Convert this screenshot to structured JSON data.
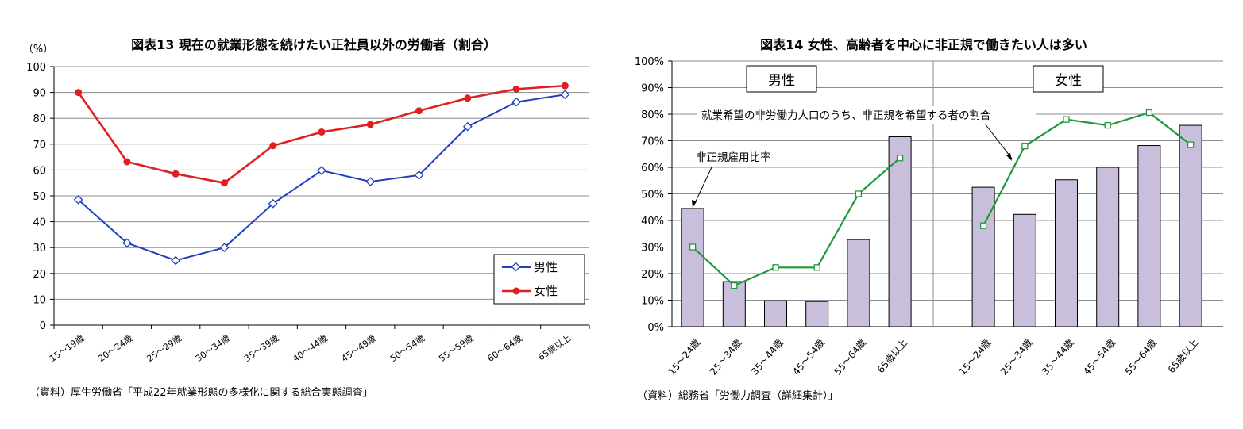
{
  "chart_data": [
    {
      "type": "line",
      "title": "図表13  現在の就業形態を続けたい正社員以外の労働者（割合）",
      "ylabel": "（%）",
      "ylim": [
        0,
        100
      ],
      "yticks": [
        "0",
        "10",
        "20",
        "30",
        "40",
        "50",
        "60",
        "70",
        "80",
        "90",
        "100"
      ],
      "categories": [
        "15～19歳",
        "20～24歳",
        "25～29歳",
        "30～34歳",
        "35～39歳",
        "40～44歳",
        "45～49歳",
        "50～54歳",
        "55～59歳",
        "60～64歳",
        "65歳以上"
      ],
      "series": [
        {
          "name": "男性",
          "color": "#1f3fbf",
          "marker": "diamond-open",
          "values": [
            48.5,
            31.8,
            25.0,
            30.0,
            47.0,
            59.8,
            55.5,
            58.0,
            76.8,
            86.3,
            89.2
          ]
        },
        {
          "name": "女性",
          "color": "#e02020",
          "marker": "circle-filled",
          "values": [
            90.0,
            63.2,
            58.5,
            55.0,
            69.4,
            74.7,
            77.6,
            82.9,
            87.8,
            91.3,
            92.6
          ]
        }
      ],
      "legend": {
        "position": "bottom-right",
        "entries": [
          "男性",
          "女性"
        ]
      },
      "source": "（資料）厚生労働省「平成22年就業形態の多様化に関する総合実態調査」"
    },
    {
      "type": "bar",
      "title": "図表14  女性、高齢者を中心に非正規で働きたい人は多い",
      "ylim": [
        0,
        100
      ],
      "yticks": [
        "0%",
        "10%",
        "20%",
        "30%",
        "40%",
        "50%",
        "60%",
        "70%",
        "80%",
        "90%",
        "100%"
      ],
      "bar_color": "#c9bfdd",
      "line_color": "#1e9a3c",
      "groups": [
        {
          "label": "男性",
          "categories": [
            "15～24歳",
            "25～34歳",
            "35～44歳",
            "45～54歳",
            "55～64歳",
            "65歳以上"
          ],
          "bars": [
            44.5,
            17.0,
            9.8,
            9.5,
            32.8,
            71.5
          ],
          "line": [
            30.0,
            15.5,
            22.3,
            22.3,
            50.0,
            63.5
          ]
        },
        {
          "label": "女性",
          "categories": [
            "15～24歳",
            "25～34歳",
            "35～44歳",
            "45～54歳",
            "55～64歳",
            "65歳以上"
          ],
          "bars": [
            52.5,
            42.3,
            55.3,
            60.0,
            68.2,
            75.8
          ],
          "line": [
            38.0,
            68.0,
            78.0,
            75.8,
            80.6,
            68.5
          ]
        }
      ],
      "annotations": {
        "bar_label": "非正規雇用比率",
        "line_label": "就業希望の非労働力人口のうち、非正規を希望する者の割合"
      },
      "source": "（資料）総務省「労働力調査（詳細集計）」"
    }
  ]
}
